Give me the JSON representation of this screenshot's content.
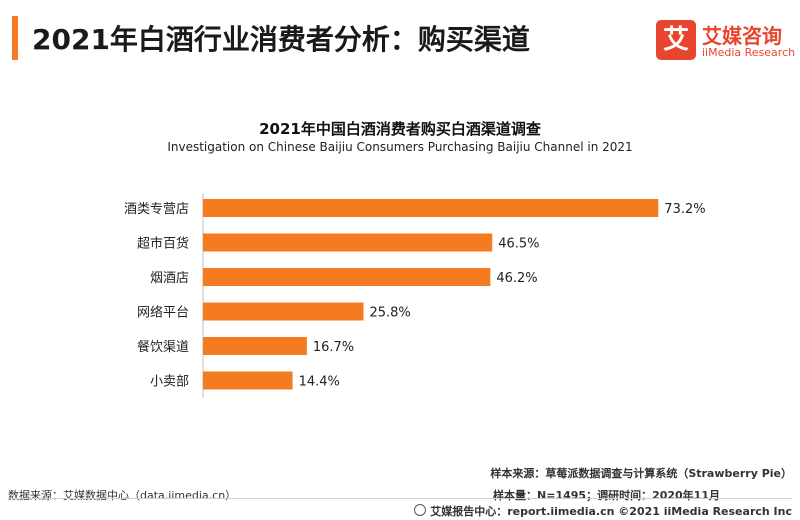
{
  "header": {
    "title": "2021年白酒行业消费者分析：购买渠道",
    "logo_mark": "艾",
    "logo_cn": "艾媒咨询",
    "logo_en": "iiMedia Research"
  },
  "colors": {
    "accent": "#f47b20",
    "bar": "#f47b20",
    "brand": "#e8452e"
  },
  "chart_data": {
    "type": "bar",
    "orientation": "horizontal",
    "title": "2021年中国白酒消费者购买白酒渠道调查",
    "subtitle": "Investigation on Chinese Baijiu Consumers Purchasing Baijiu Channel in 2021",
    "categories": [
      "酒类专营店",
      "超市百货",
      "烟酒店",
      "网络平台",
      "餐饮渠道",
      "小卖部"
    ],
    "values": [
      73.2,
      46.5,
      46.2,
      25.8,
      16.7,
      14.4
    ],
    "value_labels": [
      "73.2%",
      "46.5%",
      "46.2%",
      "25.8%",
      "16.7%",
      "14.4%"
    ],
    "unit": "%",
    "xlim": [
      0,
      100
    ],
    "grid": false,
    "legend": "none"
  },
  "footer": {
    "data_source": "数据来源：艾媒数据中心（data.iimedia.cn）",
    "sample_source": "样本来源：草莓派数据调查与计算系统（Strawberry Pie）",
    "sample_size": "样本量：N=1495；调研时间：2020年11月",
    "copyright": "艾媒报告中心：report.iimedia.cn  ©2021  iiMedia Research  Inc"
  }
}
